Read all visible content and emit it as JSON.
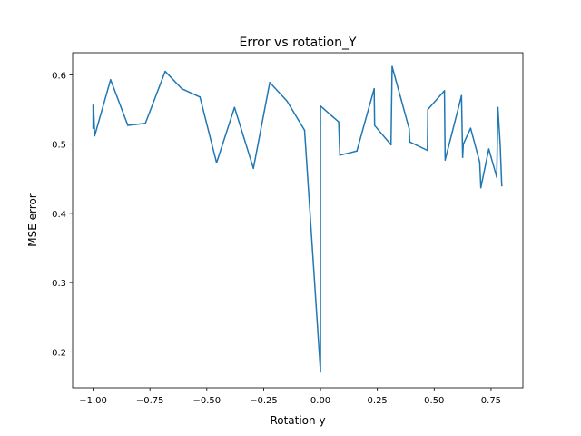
{
  "chart_data": {
    "type": "line",
    "title": "Error vs rotation_Y",
    "xlabel": "Rotation y",
    "ylabel": "MSE error",
    "xlim": [
      -1.09,
      0.89
    ],
    "ylim": [
      0.148,
      0.632
    ],
    "xticks": [
      -1.0,
      -0.75,
      -0.5,
      -0.25,
      0.0,
      0.25,
      0.5,
      0.75
    ],
    "xtick_labels": [
      "−1.00",
      "−0.75",
      "−0.50",
      "−0.25",
      "0.00",
      "0.25",
      "0.50",
      "0.75"
    ],
    "yticks": [
      0.2,
      0.3,
      0.4,
      0.5,
      0.6
    ],
    "ytick_labels": [
      "0.2",
      "0.3",
      "0.4",
      "0.5",
      "0.6"
    ],
    "grid": false,
    "legend": "none",
    "series": [
      {
        "color": "#1f77b4",
        "x": [
          -1.0,
          -1.0,
          -0.998,
          -0.993,
          -0.923,
          -0.847,
          -0.77,
          -0.683,
          -0.61,
          -0.53,
          -0.457,
          -0.378,
          -0.295,
          -0.223,
          -0.147,
          -0.07,
          0.0,
          0.0,
          0.08,
          0.085,
          0.16,
          0.236,
          0.238,
          0.31,
          0.315,
          0.39,
          0.393,
          0.47,
          0.472,
          0.545,
          0.548,
          0.62,
          0.625,
          0.628,
          0.66,
          0.7,
          0.705,
          0.74,
          0.775,
          0.78,
          0.79,
          0.797
        ],
        "y": [
          0.556,
          0.523,
          0.555,
          0.512,
          0.593,
          0.527,
          0.53,
          0.605,
          0.58,
          0.568,
          0.473,
          0.553,
          0.465,
          0.589,
          0.562,
          0.52,
          0.171,
          0.555,
          0.532,
          0.484,
          0.49,
          0.58,
          0.527,
          0.499,
          0.612,
          0.522,
          0.503,
          0.491,
          0.55,
          0.577,
          0.477,
          0.57,
          0.481,
          0.5,
          0.523,
          0.474,
          0.437,
          0.493,
          0.452,
          0.553,
          0.5,
          0.44
        ]
      }
    ]
  }
}
